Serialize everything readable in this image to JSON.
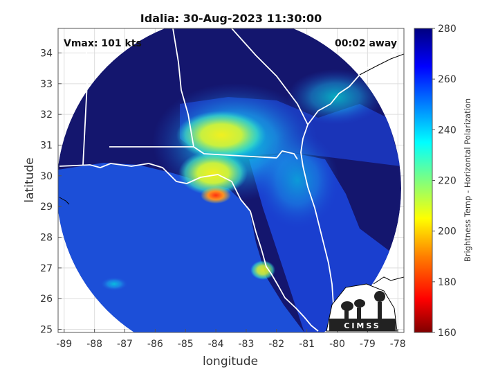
{
  "title": "Idalia: 30-Aug-2023 11:30:00",
  "overlay_left": "Vmax: 101 kts",
  "overlay_right": "00:02 away",
  "xlabel": "longitude",
  "ylabel": "latitude",
  "x_ticks": [
    "-89",
    "-88",
    "-87",
    "-86",
    "-85",
    "-84",
    "-83",
    "-82",
    "-81",
    "-80",
    "-79",
    "-78"
  ],
  "y_ticks": [
    "25",
    "26",
    "27",
    "28",
    "29",
    "30",
    "31",
    "32",
    "33",
    "34"
  ],
  "colorbar": {
    "label": "Brightness Temp - Horizontal Polarization",
    "ticks": [
      "160",
      "180",
      "200",
      "220",
      "240",
      "260",
      "280"
    ],
    "min": 160,
    "max": 280
  },
  "logo_text": "CIMSS",
  "map_extent": {
    "lon": [
      -89.2,
      -77.8
    ],
    "lat": [
      24.9,
      34.8
    ]
  },
  "colors": {
    "background_cold": "#14166e",
    "field_warm": "#1c4fd8",
    "coast_outline": "#ffffff",
    "land_outside": "#000000"
  }
}
